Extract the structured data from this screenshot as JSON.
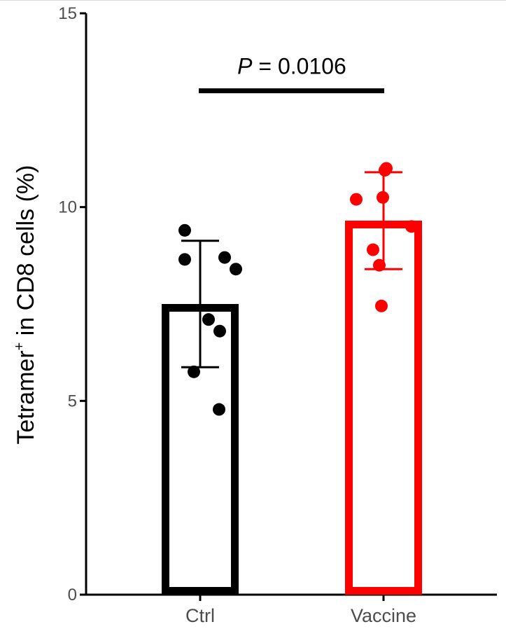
{
  "chart_data": {
    "type": "bar",
    "categories": [
      "Ctrl",
      "Vaccine"
    ],
    "values": [
      7.5,
      9.65
    ],
    "error": [
      1.63,
      1.25
    ],
    "colors": [
      "#000000",
      "#ff0000"
    ],
    "points": [
      [
        9.4,
        8.65,
        8.7,
        8.4,
        7.1,
        6.8,
        5.75,
        4.78
      ],
      [
        11.0,
        10.95,
        10.2,
        10.25,
        9.5,
        8.9,
        8.5,
        7.45
      ]
    ],
    "ylabel_main": "Tetramer",
    "ylabel_sup": "+",
    "ylabel_rest": " in CD8 cells (%)",
    "ylim": [
      0,
      15
    ],
    "yticks": [
      "0",
      "5",
      "10",
      "15"
    ],
    "grid": false,
    "annotation": {
      "p_symbol": "P",
      "p_equals": " = ",
      "p_value": "0.0106",
      "y": 13
    }
  }
}
